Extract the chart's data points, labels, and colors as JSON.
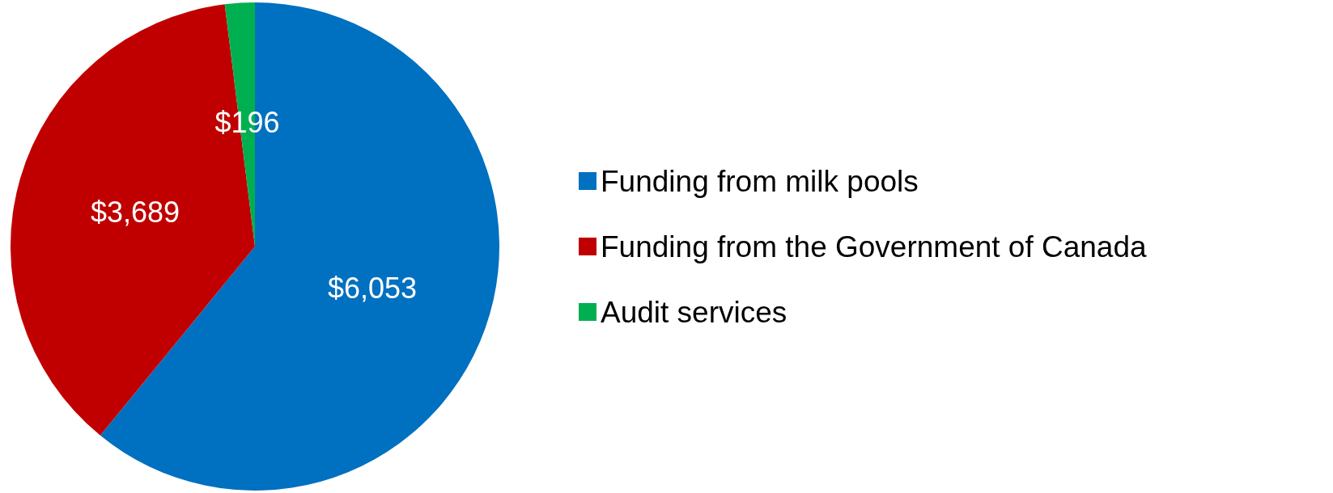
{
  "chart_data": {
    "type": "pie",
    "categories": [
      "Funding from milk pools",
      "Funding from the Government of Canada",
      "Audit services"
    ],
    "values": [
      6053,
      3689,
      196
    ],
    "colors": [
      "#0070c0",
      "#c00000",
      "#00b050"
    ],
    "value_labels": [
      "$6,053",
      "$3,689",
      "$196"
    ],
    "legend": "right"
  }
}
